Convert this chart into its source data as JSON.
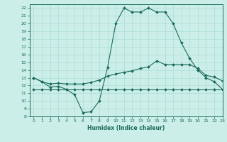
{
  "xlabel": "Humidex (Indice chaleur)",
  "xlim": [
    -0.5,
    23
  ],
  "ylim": [
    8,
    22.5
  ],
  "yticks": [
    8,
    9,
    10,
    11,
    12,
    13,
    14,
    15,
    16,
    17,
    18,
    19,
    20,
    21,
    22
  ],
  "xticks": [
    0,
    1,
    2,
    3,
    4,
    5,
    6,
    7,
    8,
    9,
    10,
    11,
    12,
    13,
    14,
    15,
    16,
    17,
    18,
    19,
    20,
    21,
    22,
    23
  ],
  "background_color": "#cceee8",
  "grid_color": "#aaddd4",
  "line_color": "#1a6b5a",
  "line1_x": [
    0,
    1,
    2,
    3,
    4,
    5,
    6,
    7,
    8,
    9,
    10,
    11,
    12,
    13,
    14,
    15,
    16,
    17,
    18,
    19,
    20,
    21,
    22,
    23
  ],
  "line1_y": [
    13.0,
    12.5,
    11.8,
    11.9,
    11.5,
    10.8,
    8.5,
    8.6,
    10.0,
    14.3,
    20.0,
    22.0,
    21.5,
    21.5,
    22.0,
    21.5,
    21.5,
    20.0,
    17.5,
    15.5,
    14.0,
    13.0,
    12.5,
    11.5
  ],
  "line2_x": [
    0,
    1,
    2,
    3,
    4,
    5,
    6,
    7,
    8,
    9,
    10,
    11,
    12,
    13,
    14,
    15,
    16,
    17,
    18,
    19,
    20,
    21,
    22,
    23
  ],
  "line2_y": [
    11.5,
    11.5,
    11.5,
    11.5,
    11.5,
    11.5,
    11.5,
    11.5,
    11.5,
    11.5,
    11.5,
    11.5,
    11.5,
    11.5,
    11.5,
    11.5,
    11.5,
    11.5,
    11.5,
    11.5,
    11.5,
    11.5,
    11.5,
    11.5
  ],
  "line3_x": [
    0,
    1,
    2,
    3,
    4,
    5,
    6,
    7,
    8,
    9,
    10,
    11,
    12,
    13,
    14,
    15,
    16,
    17,
    18,
    19,
    20,
    21,
    22,
    23
  ],
  "line3_y": [
    13.0,
    12.5,
    12.2,
    12.3,
    12.2,
    12.2,
    12.2,
    12.4,
    12.7,
    13.2,
    13.5,
    13.7,
    13.9,
    14.2,
    14.4,
    15.2,
    14.7,
    14.7,
    14.7,
    14.7,
    14.2,
    13.3,
    13.1,
    12.6
  ]
}
